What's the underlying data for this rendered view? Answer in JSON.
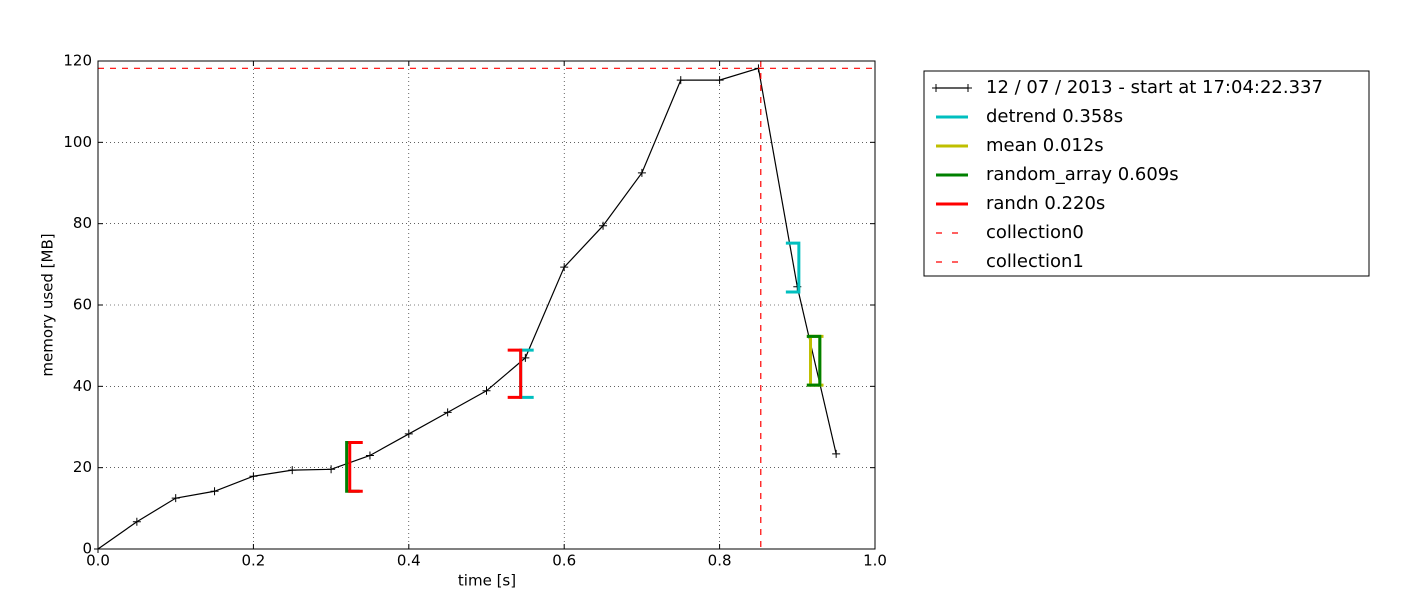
{
  "chart_data": {
    "type": "line",
    "xlabel": "time [s]",
    "ylabel": "memory used [MB]",
    "xlim": [
      0,
      1
    ],
    "ylim": [
      0,
      120
    ],
    "xticks": [
      {
        "value": 0,
        "label": "0.0"
      },
      0.2,
      0.4,
      0.6,
      0.8,
      {
        "value": 1,
        "label": "1.0"
      }
    ],
    "yticks": [
      0,
      20,
      40,
      60,
      80,
      100,
      120
    ],
    "grid": true,
    "legend": "outside-upper-right",
    "series": [
      {
        "name": "12 / 07 / 2013 - start at 17:04:22.337",
        "color": "#000000",
        "x": [
          0,
          0.05,
          0.1,
          0.15,
          0.2,
          0.25,
          0.3,
          0.35,
          0.4,
          0.45,
          0.5,
          0.55,
          0.6,
          0.65,
          0.7,
          0.75,
          0.8,
          0.85,
          0.9,
          0.95
        ],
        "values": [
          0,
          6.7,
          12.5,
          14.2,
          17.9,
          19.4,
          19.6,
          23,
          28.3,
          33.6,
          38.9,
          47,
          69.3,
          79.5,
          92.5,
          115.3,
          115.3,
          118.2,
          64.5,
          23.4
        ]
      }
    ],
    "functions": [
      {
        "name": "detrend 0.358s",
        "color": "#00bfbf",
        "x": [
          0.544,
          0.902
        ],
        "ymin": [
          37.3,
          63.2
        ],
        "ymax": [
          48.9,
          75.2
        ]
      },
      {
        "name": "mean 0.012s",
        "color": "#bfbf00",
        "x": [
          0.917,
          0.929
        ],
        "ymin": [
          40.3,
          40.3
        ],
        "ymax": [
          52.3,
          52.3
        ]
      },
      {
        "name": "random_array 0.609s",
        "color": "#008000",
        "x": [
          0.32,
          0.929
        ],
        "ymin": [
          14.2,
          40.3
        ],
        "ymax": [
          26.2,
          52.3
        ]
      },
      {
        "name": "randn 0.220s",
        "color": "#ff0000",
        "x": [
          0.324,
          0.544
        ],
        "ymin": [
          14.2,
          37.3
        ],
        "ymax": [
          26.2,
          48.9
        ]
      }
    ],
    "collections": [
      {
        "name": "collection0",
        "color": "#ff0000",
        "orientation": "horizontal",
        "value": 118.2
      },
      {
        "name": "collection1",
        "color": "#ff0000",
        "orientation": "vertical",
        "value": 0.853
      }
    ]
  }
}
